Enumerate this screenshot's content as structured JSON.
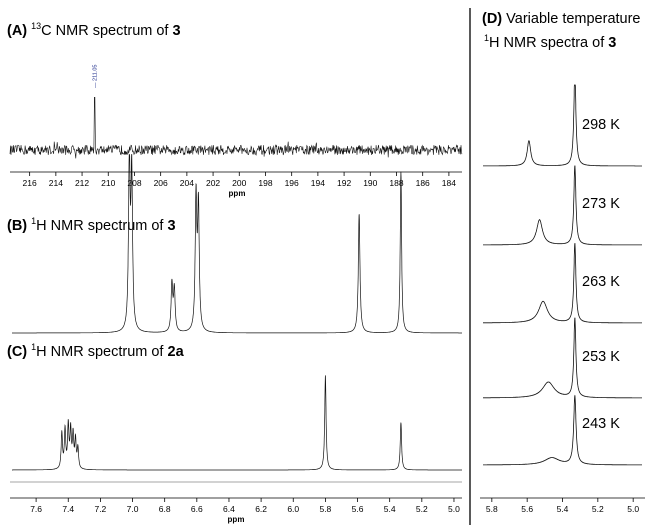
{
  "chart_data": [
    {
      "type": "line",
      "panel": "(A)",
      "title_parts": [
        "(A)",
        "13",
        "C NMR spectrum of ",
        "3"
      ],
      "xlabel": "ppm",
      "x_reversed": true,
      "xlim": [
        217.5,
        183
      ],
      "ticks": [
        216,
        214,
        212,
        210,
        208,
        206,
        204,
        202,
        200,
        198,
        196,
        194,
        192,
        190,
        188,
        186,
        184
      ],
      "peaks": [
        {
          "ppm": 211.05,
          "height": 0.85
        }
      ],
      "annotations": [
        {
          "text": "211.05",
          "ppm": 211.05
        }
      ],
      "noise_amplitude": 0.08
    },
    {
      "type": "line",
      "panel": "(B)",
      "title_parts": [
        "(B)",
        "1",
        "H NMR spectrum of ",
        "3"
      ],
      "x_reversed": true,
      "peaks": [
        {
          "ppm": 7.02,
          "height": 1.0,
          "width": 0.006
        },
        {
          "ppm": 7.005,
          "height": 0.92,
          "width": 0.006
        },
        {
          "ppm": 6.755,
          "height": 0.28,
          "width": 0.006
        },
        {
          "ppm": 6.74,
          "height": 0.25,
          "width": 0.006
        },
        {
          "ppm": 6.605,
          "height": 0.78,
          "width": 0.006
        },
        {
          "ppm": 6.59,
          "height": 0.72,
          "width": 0.006
        },
        {
          "ppm": 5.59,
          "height": 0.7,
          "width": 0.006
        },
        {
          "ppm": 5.33,
          "height": 0.95,
          "width": 0.005
        }
      ]
    },
    {
      "type": "line",
      "panel": "(C)",
      "title_parts": [
        "(C)",
        "1",
        "H NMR spectrum of ",
        "2a"
      ],
      "xlabel": "ppm",
      "x_reversed": true,
      "xlim": [
        7.75,
        4.95
      ],
      "ticks": [
        7.6,
        7.4,
        7.2,
        7.0,
        6.8,
        6.6,
        6.4,
        6.2,
        6.0,
        5.8,
        5.6,
        5.4,
        5.2,
        5.0
      ],
      "tick_labels": [
        "7.6",
        "7.4",
        "7.2",
        "7.0",
        "6.8",
        "6.6",
        "6.4",
        "6.2",
        "6.0",
        "5.8",
        "5.6",
        "5.4",
        "5.2",
        "5.0"
      ],
      "peaks": [
        {
          "ppm": 7.44,
          "height": 0.38,
          "width": 0.005
        },
        {
          "ppm": 7.42,
          "height": 0.41,
          "width": 0.005
        },
        {
          "ppm": 7.4,
          "height": 0.45,
          "width": 0.005
        },
        {
          "ppm": 7.385,
          "height": 0.4,
          "width": 0.005
        },
        {
          "ppm": 7.37,
          "height": 0.35,
          "width": 0.005
        },
        {
          "ppm": 7.355,
          "height": 0.3,
          "width": 0.005
        },
        {
          "ppm": 7.34,
          "height": 0.22,
          "width": 0.005
        },
        {
          "ppm": 5.8,
          "height": 1.0,
          "width": 0.005
        },
        {
          "ppm": 5.33,
          "height": 0.5,
          "width": 0.005
        }
      ]
    },
    {
      "type": "line",
      "panel": "(D)",
      "title_parts": [
        "(D)",
        " Variable temperature",
        "1",
        "H NMR spectra of ",
        "3"
      ],
      "x_reversed": true,
      "xlim": [
        5.85,
        4.95
      ],
      "ticks": [
        5.8,
        5.6,
        5.4,
        5.2,
        5.0
      ],
      "tick_labels": [
        "5.8",
        "5.6",
        "5.4",
        "5.2",
        "5.0"
      ],
      "series": [
        {
          "name": "298 K",
          "peaks": [
            {
              "ppm": 5.59,
              "height": 0.35,
              "width": 0.012
            },
            {
              "ppm": 5.33,
              "height": 1.3,
              "width": 0.007
            }
          ]
        },
        {
          "name": "273 K",
          "peaks": [
            {
              "ppm": 5.53,
              "height": 0.35,
              "width": 0.02
            },
            {
              "ppm": 5.33,
              "height": 1.1,
              "width": 0.007
            }
          ]
        },
        {
          "name": "263 K",
          "peaks": [
            {
              "ppm": 5.51,
              "height": 0.3,
              "width": 0.03
            },
            {
              "ppm": 5.33,
              "height": 1.1,
              "width": 0.007
            }
          ]
        },
        {
          "name": "253 K",
          "peaks": [
            {
              "ppm": 5.48,
              "height": 0.22,
              "width": 0.04
            },
            {
              "ppm": 5.33,
              "height": 1.1,
              "width": 0.007
            }
          ]
        },
        {
          "name": "243 K",
          "peaks": [
            {
              "ppm": 5.46,
              "height": 0.1,
              "width": 0.05
            },
            {
              "ppm": 5.33,
              "height": 0.95,
              "width": 0.008
            }
          ]
        }
      ]
    }
  ]
}
